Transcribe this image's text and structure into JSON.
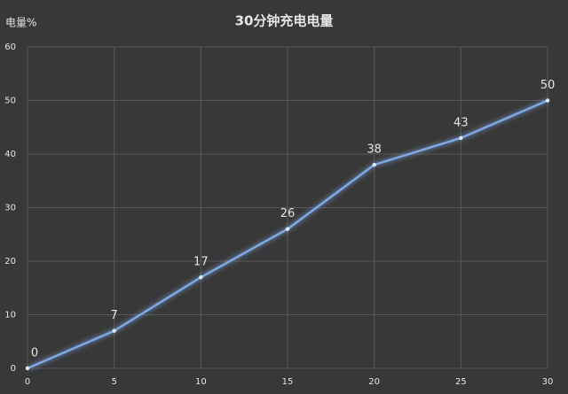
{
  "chart_data": {
    "type": "line",
    "title": "30分钟充电电量",
    "y_label": "电量%",
    "x": [
      0,
      5,
      10,
      15,
      20,
      25,
      30
    ],
    "series": [
      {
        "name": "电量",
        "color": "#7ea8e6",
        "values": [
          0,
          7,
          17,
          26,
          38,
          43,
          50
        ]
      }
    ],
    "xlim": [
      0,
      30
    ],
    "xticks": [
      0,
      5,
      10,
      15,
      20,
      25,
      30
    ],
    "ylim": [
      0,
      60
    ],
    "yticks": [
      0,
      10,
      20,
      30,
      40,
      50,
      60
    ],
    "grid": true
  }
}
